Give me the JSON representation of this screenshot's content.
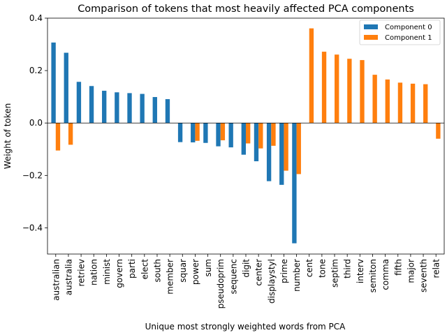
{
  "chart_data": {
    "type": "bar",
    "title": "Comparison of tokens that most heavily affected PCA components",
    "xlabel": "Unique most strongly weighted words from PCA",
    "ylabel": "Weight of token",
    "ylim": [
      -0.5,
      0.4
    ],
    "yticks": [
      {
        "value": 0.4,
        "label": "0.4"
      },
      {
        "value": 0.2,
        "label": "0.2"
      },
      {
        "value": 0.0,
        "label": "0.0"
      },
      {
        "value": -0.2,
        "label": "−0.2"
      },
      {
        "value": -0.4,
        "label": "−0.4"
      }
    ],
    "categories": [
      "australian",
      "australia",
      "retriev",
      "nation",
      "minist",
      "govern",
      "parti",
      "elect",
      "south",
      "member",
      "squar",
      "power",
      "sum",
      "pseudoprim",
      "sequenc",
      "digit",
      "center",
      "displaystyl",
      "prime",
      "number",
      "cent",
      "tone",
      "septim",
      "third",
      "interv",
      "semiton",
      "comma",
      "fifth",
      "major",
      "seventh",
      "relat"
    ],
    "series": [
      {
        "name": "Component 0",
        "color": "#1f77b4",
        "values": [
          0.307,
          0.268,
          0.157,
          0.141,
          0.123,
          0.117,
          0.114,
          0.111,
          0.099,
          0.091,
          -0.073,
          -0.074,
          -0.076,
          -0.089,
          -0.093,
          -0.121,
          -0.146,
          -0.222,
          -0.236,
          -0.459,
          0,
          0,
          0,
          0,
          0,
          0,
          0,
          0,
          0,
          0,
          0
        ]
      },
      {
        "name": "Component 1",
        "color": "#ff7f0e",
        "values": [
          -0.105,
          -0.083,
          0,
          0,
          0,
          0,
          0,
          0,
          0,
          0,
          0,
          -0.068,
          0,
          -0.066,
          0,
          -0.078,
          -0.097,
          -0.087,
          -0.182,
          -0.195,
          0.361,
          0.272,
          0.261,
          0.245,
          0.24,
          0.184,
          0.166,
          0.154,
          0.15,
          0.148,
          -0.06
        ]
      }
    ],
    "legend": {
      "placement": "top-right"
    },
    "grid": false,
    "zero_line": true
  }
}
